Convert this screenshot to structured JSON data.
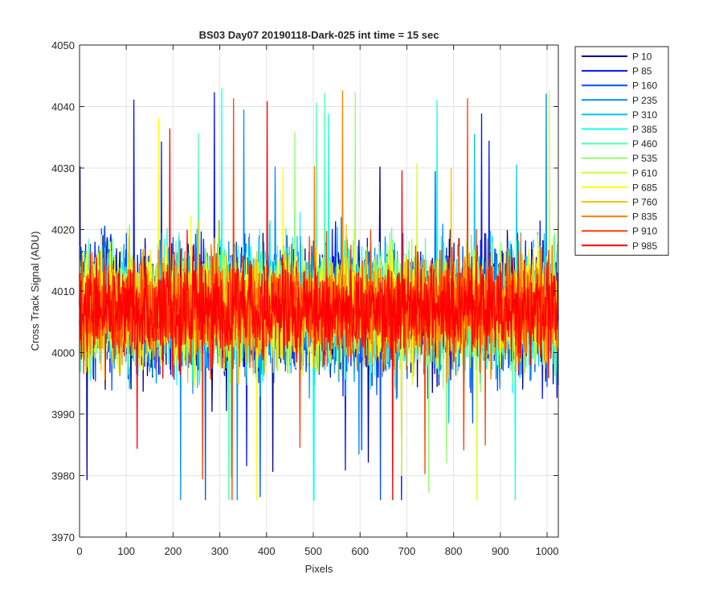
{
  "chart_data": {
    "type": "line",
    "title": "BS03 Day07 20190118-Dark-025 int time = 15 sec",
    "xlabel": "Pixels",
    "ylabel": "Cross Track Signal (ADU)",
    "xlim": [
      0,
      1024
    ],
    "ylim": [
      3970,
      4050
    ],
    "xticks": [
      0,
      100,
      200,
      300,
      400,
      500,
      600,
      700,
      800,
      900,
      1000
    ],
    "yticks": [
      3970,
      3980,
      3990,
      4000,
      4010,
      4020,
      4030,
      4040,
      4050
    ],
    "grid": true,
    "legend_position": "outside-top-right",
    "noise_model": {
      "pixels": 1024,
      "mean": 4007,
      "min": 3976,
      "max": 4046
    },
    "series": [
      {
        "name": "P 10",
        "color": "#00008f"
      },
      {
        "name": "P 85",
        "color": "#0010ff"
      },
      {
        "name": "P 160",
        "color": "#0050ff"
      },
      {
        "name": "P 235",
        "color": "#0090ff"
      },
      {
        "name": "P 310",
        "color": "#00c0ff"
      },
      {
        "name": "P 385",
        "color": "#10ffef"
      },
      {
        "name": "P 460",
        "color": "#50ffaf"
      },
      {
        "name": "P 535",
        "color": "#90ff70"
      },
      {
        "name": "P 610",
        "color": "#cfff30"
      },
      {
        "name": "P 685",
        "color": "#ffff00"
      },
      {
        "name": "P 760",
        "color": "#ffc000"
      },
      {
        "name": "P 835",
        "color": "#ff8000"
      },
      {
        "name": "P 910",
        "color": "#ff4000"
      },
      {
        "name": "P 985",
        "color": "#ff0000"
      }
    ]
  }
}
